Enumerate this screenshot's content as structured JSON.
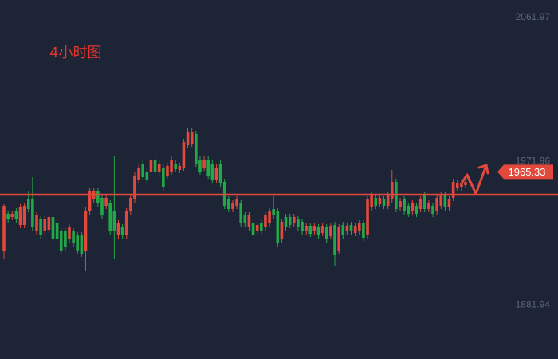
{
  "chart_data": {
    "type": "candlestick",
    "title": "4小时图",
    "open": [
      1915.5,
      1939,
      1937,
      1940.5,
      1932,
      1932,
      1948,
      1948,
      1928,
      1935.5,
      1928,
      1929,
      1937,
      1933,
      1928,
      1928,
      1923,
      1928,
      1925.5,
      1925.5,
      1915.5,
      1940.5,
      1948,
      1953,
      1949,
      1944,
      1945.5,
      1940.5,
      1925.5,
      1930.5,
      1925.5,
      1940.5,
      1948,
      1960.5,
      1970.5,
      1965.5,
      1965.5,
      1973,
      1965.5,
      1968,
      1963,
      1965.5,
      1970.5,
      1966.5,
      1968,
      1982,
      1983,
      1989,
      1973,
      1968,
      1973,
      1970.5,
      1960.5,
      1970.5,
      1959,
      1948,
      1942,
      1944,
      1945.5,
      1938,
      1930.5,
      1933,
      1928,
      1933,
      1930.5,
      1933,
      1942,
      1940.5,
      1923,
      1937,
      1937,
      1933,
      1935.5,
      1934,
      1928,
      1931.5,
      1928,
      1930.5,
      1927,
      1930.5,
      1925,
      1932,
      1915.5,
      1932,
      1928,
      1932,
      1927,
      1928,
      1933,
      1925.5,
      1943,
      1949,
      1945,
      1948,
      1944,
      1948,
      1959,
      1943,
      1948,
      1944,
      1940.5,
      1944,
      1942,
      1950.5,
      1942,
      1944,
      1940.5,
      1944,
      1950.5,
      1943,
      1949,
      1955,
      1955.5,
      1957
    ],
    "high": [
      1945,
      1941,
      1941,
      1942.5,
      1945,
      1946,
      1953,
      1962,
      1940,
      1937.5,
      1937.5,
      1939,
      1939,
      1935,
      1930,
      1930,
      1932.5,
      1930,
      1927.5,
      1927.5,
      1943,
      1955,
      1955,
      1955,
      1951,
      1951,
      1947.5,
      1975.5,
      1935,
      1932.5,
      1942.5,
      1951,
      1965,
      1970,
      1972.5,
      1967.5,
      1975,
      1975,
      1972.5,
      1970,
      1971,
      1975,
      1972.5,
      1971,
      1986,
      1992.5,
      1992.5,
      1991,
      1975,
      1975,
      1975,
      1972.5,
      1970,
      1972.5,
      1961,
      1950,
      1947.5,
      1950,
      1947.5,
      1940,
      1940,
      1935,
      1934,
      1935,
      1940,
      1942.5,
      1950,
      1942.5,
      1936,
      1939,
      1939,
      1939,
      1937.5,
      1936,
      1933.5,
      1933.5,
      1933.5,
      1932.5,
      1933.5,
      1932.5,
      1933.5,
      1934,
      1932.5,
      1934,
      1933.5,
      1934,
      1933.5,
      1935,
      1935,
      1950,
      1952.5,
      1951,
      1951,
      1950,
      1952.5,
      1966.5,
      1961,
      1949,
      1950,
      1946,
      1947.5,
      1946,
      1950,
      1952.5,
      1947.5,
      1946,
      1951,
      1952.5,
      1952.5,
      1950,
      1961,
      1960,
      1960,
      1961
    ],
    "low": [
      1910.5,
      1933.5,
      1935,
      1933.5,
      1930,
      1930,
      1940,
      1928,
      1926,
      1923.5,
      1926,
      1927,
      1921,
      1921,
      1913.5,
      1916,
      1921,
      1918.5,
      1913.5,
      1912,
      1903,
      1938.5,
      1946,
      1943.5,
      1936,
      1942,
      1926,
      1910.5,
      1923.5,
      1923.5,
      1923.5,
      1938.5,
      1946,
      1958.5,
      1960,
      1958.5,
      1963.5,
      1963.5,
      1963.5,
      1953.5,
      1961,
      1963.5,
      1965,
      1964.5,
      1966,
      1980,
      1981,
      1968.5,
      1963.5,
      1966,
      1961,
      1958.5,
      1958.5,
      1956,
      1942,
      1940,
      1940,
      1942,
      1931,
      1931,
      1928.5,
      1923.5,
      1926,
      1926,
      1928.5,
      1931,
      1936,
      1918.5,
      1921,
      1928.5,
      1930,
      1931,
      1928.5,
      1926,
      1926,
      1924.5,
      1926,
      1923.5,
      1925,
      1921,
      1923,
      1906.5,
      1913.5,
      1923.5,
      1926,
      1926,
      1925,
      1926,
      1922,
      1923.5,
      1941,
      1942,
      1943,
      1942,
      1942,
      1946,
      1940,
      1941,
      1938.5,
      1937,
      1938.5,
      1937,
      1940,
      1940,
      1940,
      1937,
      1938.5,
      1942,
      1941,
      1941,
      1947,
      1953,
      1953.5,
      1955
    ],
    "close": [
      1944,
      1935.5,
      1939,
      1935.5,
      1943,
      1944,
      1942,
      1930.5,
      1938,
      1925.5,
      1935.5,
      1937,
      1923,
      1923,
      1915.5,
      1918,
      1930.5,
      1920.5,
      1915.5,
      1914,
      1940.5,
      1953,
      1953,
      1945.5,
      1938,
      1949,
      1928,
      1928,
      1933,
      1925.5,
      1940.5,
      1949,
      1963,
      1968,
      1962,
      1960.5,
      1973,
      1965.5,
      1970.5,
      1955.5,
      1969,
      1973,
      1967,
      1969,
      1984,
      1990.5,
      1990.5,
      1970.5,
      1965.5,
      1973,
      1963,
      1960.5,
      1968,
      1958,
      1944,
      1942,
      1945.5,
      1948,
      1933,
      1933,
      1938,
      1925.5,
      1932,
      1928,
      1938,
      1940.5,
      1938,
      1920.5,
      1934,
      1930.5,
      1932,
      1937,
      1930.5,
      1928,
      1931.5,
      1926.5,
      1931.5,
      1925.5,
      1931.5,
      1923,
      1931.5,
      1913,
      1930.5,
      1925.5,
      1931.5,
      1928,
      1931.5,
      1933,
      1924,
      1948,
      1950.5,
      1944,
      1949,
      1944,
      1950.5,
      1959,
      1942,
      1947,
      1940.5,
      1939,
      1945.5,
      1939,
      1948,
      1942,
      1945.5,
      1939,
      1949,
      1950.5,
      1943,
      1948,
      1959,
      1958,
      1958,
      1959
    ],
    "up_color": "#e2483b",
    "down_color": "#22a947",
    "ylim": [
      1848,
      2073
    ],
    "yticks": [
      1881.94,
      1971.96,
      2061.97
    ],
    "last_price": 1965.33,
    "reference_line": 1951
  }
}
